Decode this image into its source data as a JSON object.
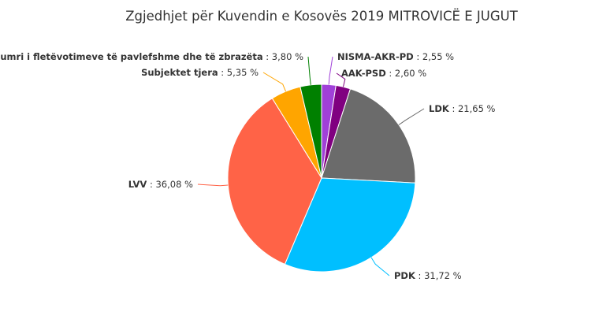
{
  "chart_data": {
    "type": "pie",
    "title": "Zgjedhjet për Kuvendin e Kosovës 2019 MITROVICË E JUGUT",
    "unit": "%",
    "slices": [
      {
        "name": "NISMA-AKR-PD",
        "value": 2.55,
        "display": "2,55",
        "color": "#a040d8"
      },
      {
        "name": "AAK-PSD",
        "value": 2.6,
        "display": "2,60",
        "color": "#800080"
      },
      {
        "name": "LDK",
        "value": 21.65,
        "display": "21,65",
        "color": "#6b6b6b"
      },
      {
        "name": "PDK",
        "value": 31.72,
        "display": "31,72",
        "color": "#00bfff"
      },
      {
        "name": "LVV",
        "value": 36.08,
        "display": "36,08",
        "color": "#ff6347"
      },
      {
        "name": "Subjektet tjera",
        "value": 5.35,
        "display": "5,35",
        "color": "#ffa500"
      },
      {
        "name": "Numri i fletëvotimeve të pavlefshme dhe të zbrazëta",
        "value": 3.8,
        "display": "3,80",
        "color": "#008000"
      }
    ]
  }
}
